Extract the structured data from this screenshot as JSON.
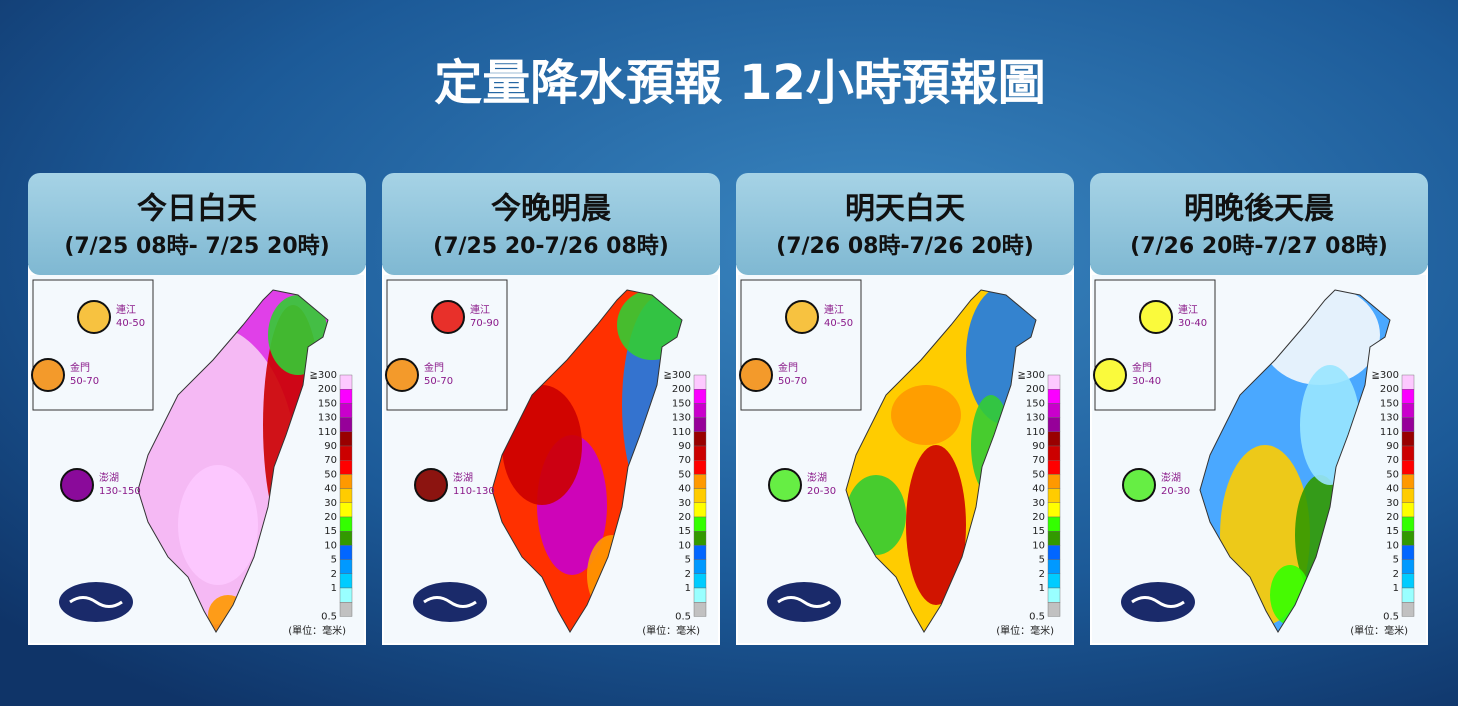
{
  "title": "定量降水預報  12小時預報圖",
  "legend": {
    "labels": [
      "≧300",
      "200",
      "150",
      "130",
      "110",
      "90",
      "70",
      "50",
      "40",
      "30",
      "20",
      "15",
      "10",
      "5",
      "2",
      "1",
      "0.5"
    ],
    "colors": [
      "#fdc9ff",
      "#fb00ff",
      "#c900cc",
      "#960099",
      "#990000",
      "#cc0000",
      "#ff0000",
      "#ff9900",
      "#ffcc00",
      "#ffff00",
      "#33ff00",
      "#329900",
      "#0166ff",
      "#0099ff",
      "#00ccff",
      "#99ffff",
      "#c1c1c1"
    ],
    "unit": "(單位：毫米)"
  },
  "panels": [
    {
      "name": "今日白天",
      "period": "(7/25 08時- 7/25 20時)",
      "islands": [
        {
          "name": "連江",
          "range": "40-50",
          "color": "#f7c240"
        },
        {
          "name": "金門",
          "range": "50-70",
          "color": "#f39a2b"
        },
        {
          "name": "澎湖",
          "range": "130-150",
          "color": "#8a0a9a"
        }
      ]
    },
    {
      "name": "今晚明晨",
      "period": "(7/25 20-7/26 08時)",
      "islands": [
        {
          "name": "連江",
          "range": "70-90",
          "color": "#e8302a"
        },
        {
          "name": "金門",
          "range": "50-70",
          "color": "#f39a2b"
        },
        {
          "name": "澎湖",
          "range": "110-130",
          "color": "#8c1410"
        }
      ]
    },
    {
      "name": "明天白天",
      "period": "(7/26 08時-7/26 20時)",
      "islands": [
        {
          "name": "連江",
          "range": "40-50",
          "color": "#f7c240"
        },
        {
          "name": "金門",
          "range": "50-70",
          "color": "#f39a2b"
        },
        {
          "name": "澎湖",
          "range": "20-30",
          "color": "#66ee44"
        }
      ]
    },
    {
      "name": "明晚後天晨",
      "period": "(7/26 20時-7/27 08時)",
      "islands": [
        {
          "name": "連江",
          "range": "30-40",
          "color": "#fafa3c"
        },
        {
          "name": "金門",
          "range": "30-40",
          "color": "#fafa3c"
        },
        {
          "name": "澎湖",
          "range": "20-30",
          "color": "#66ee44"
        }
      ]
    }
  ]
}
